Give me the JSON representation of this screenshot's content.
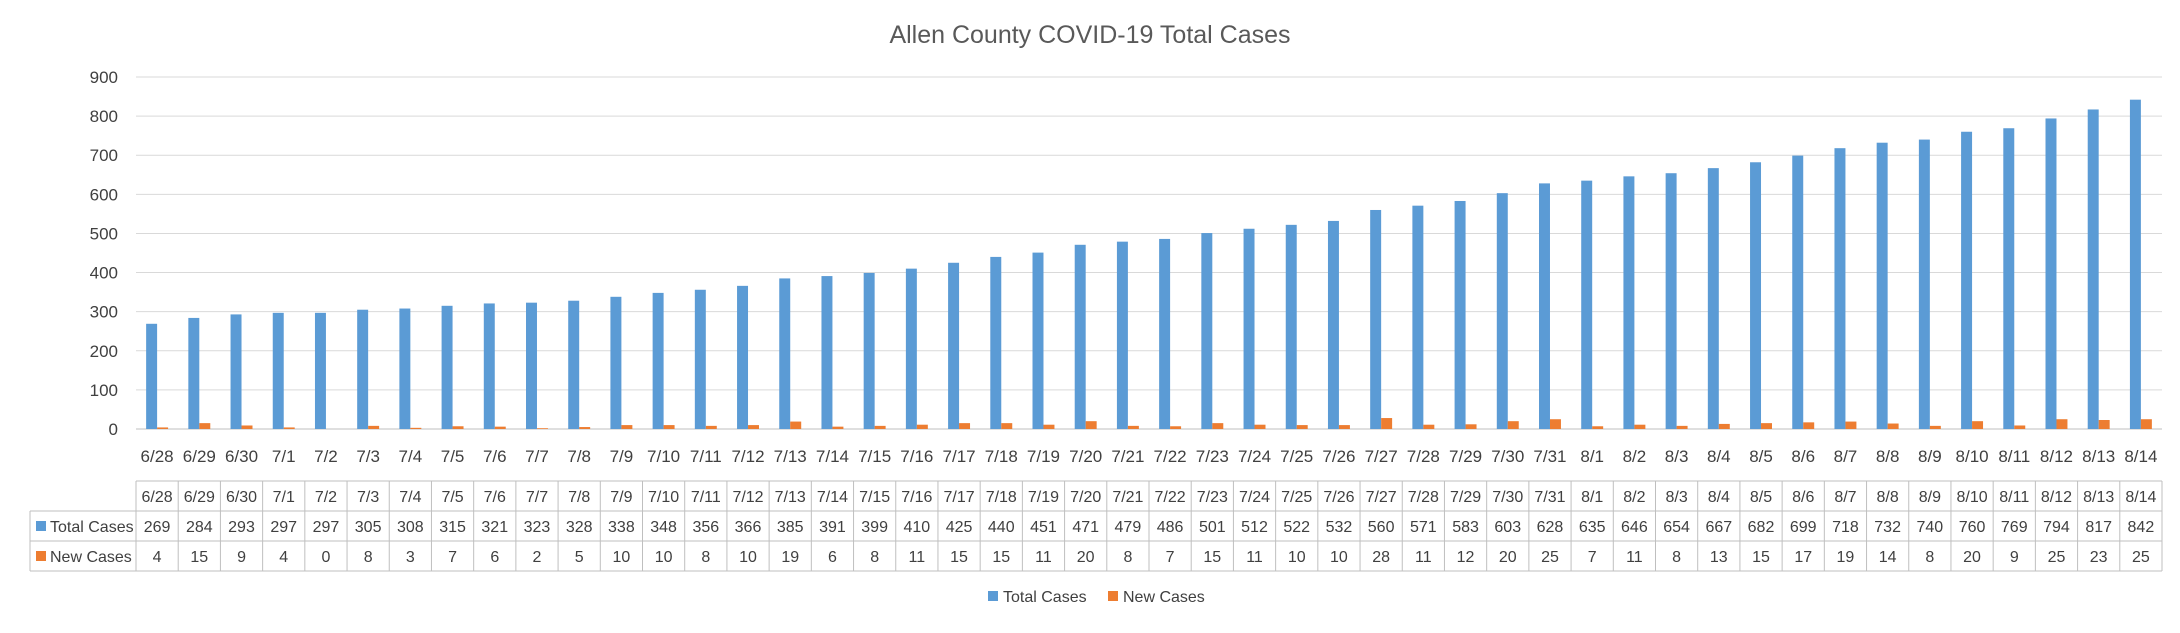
{
  "chart_data": {
    "type": "bar",
    "title": "Allen County COVID-19 Total Cases",
    "xlabel": "",
    "ylabel": "",
    "ylim": [
      0,
      900
    ],
    "yticks": [
      0,
      100,
      200,
      300,
      400,
      500,
      600,
      700,
      800,
      900
    ],
    "grid": true,
    "legend_position": "bottom",
    "data_table": true,
    "categories": [
      "6/28",
      "6/29",
      "6/30",
      "7/1",
      "7/2",
      "7/3",
      "7/4",
      "7/5",
      "7/6",
      "7/7",
      "7/8",
      "7/9",
      "7/10",
      "7/11",
      "7/12",
      "7/13",
      "7/14",
      "7/15",
      "7/16",
      "7/17",
      "7/18",
      "7/19",
      "7/20",
      "7/21",
      "7/22",
      "7/23",
      "7/24",
      "7/25",
      "7/26",
      "7/27",
      "7/28",
      "7/29",
      "7/30",
      "7/31",
      "8/1",
      "8/2",
      "8/3",
      "8/4",
      "8/5",
      "8/6",
      "8/7",
      "8/8",
      "8/9",
      "8/10",
      "8/11",
      "8/12",
      "8/13",
      "8/14"
    ],
    "series": [
      {
        "name": "Total Cases",
        "color": "#5B9BD5",
        "values": [
          269,
          284,
          293,
          297,
          297,
          305,
          308,
          315,
          321,
          323,
          328,
          338,
          348,
          356,
          366,
          385,
          391,
          399,
          410,
          425,
          440,
          451,
          471,
          479,
          486,
          501,
          512,
          522,
          532,
          560,
          571,
          583,
          603,
          628,
          635,
          646,
          654,
          667,
          682,
          699,
          718,
          732,
          740,
          760,
          769,
          794,
          817,
          842
        ]
      },
      {
        "name": "New Cases",
        "color": "#ED7D31",
        "values": [
          4,
          15,
          9,
          4,
          0,
          8,
          3,
          7,
          6,
          2,
          5,
          10,
          10,
          8,
          10,
          19,
          6,
          8,
          11,
          15,
          15,
          11,
          20,
          8,
          7,
          15,
          11,
          10,
          10,
          28,
          11,
          12,
          20,
          25,
          7,
          11,
          8,
          13,
          15,
          17,
          19,
          14,
          8,
          20,
          9,
          25,
          23,
          25
        ]
      }
    ]
  }
}
